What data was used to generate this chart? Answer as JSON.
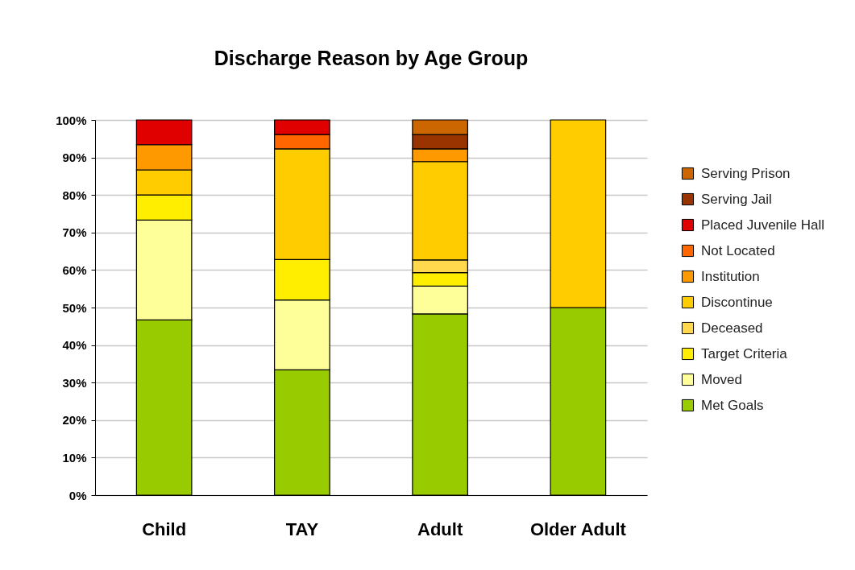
{
  "chart_data": {
    "type": "bar",
    "title": "Discharge Reason by Age Group",
    "categories": [
      "Child",
      "TAY",
      "Adult",
      "Older Adult"
    ],
    "stacked": true,
    "series": [
      {
        "name": "Met Goals",
        "color": "#99cc00",
        "values": [
          46.7,
          33.4,
          48.3,
          50
        ]
      },
      {
        "name": "Moved",
        "color": "#ffff99",
        "values": [
          26.6,
          18.6,
          7.4,
          null
        ]
      },
      {
        "name": "Target Criteria",
        "color": "#ffee00",
        "values": [
          6.7,
          10.8,
          3.6,
          null
        ]
      },
      {
        "name": "Deceased",
        "color": "#ffd84d",
        "values": [
          null,
          null,
          3.4,
          null
        ]
      },
      {
        "name": "Discontinue",
        "color": "#ffcc00",
        "values": [
          6.7,
          29.5,
          26.2,
          50
        ]
      },
      {
        "name": "Institution",
        "color": "#ff9900",
        "values": [
          6.7,
          null,
          3.4,
          null
        ]
      },
      {
        "name": "Not Located",
        "color": "#ff6600",
        "values": [
          null,
          3.8,
          null,
          null
        ]
      },
      {
        "name": "Placed Juvenile Hall",
        "color": "#e00000",
        "values": [
          6.6,
          3.9,
          null,
          null
        ]
      },
      {
        "name": "Serving Jail",
        "color": "#993300",
        "values": [
          null,
          null,
          3.8,
          null
        ]
      },
      {
        "name": "Serving Prison",
        "color": "#cc6600",
        "values": [
          null,
          null,
          3.9,
          null
        ]
      }
    ],
    "ylim": [
      0,
      100
    ],
    "yticks": [
      {
        "value": 0,
        "label": "0%"
      },
      {
        "value": 10,
        "label": "10%"
      },
      {
        "value": 20,
        "label": "20%"
      },
      {
        "value": 30,
        "label": "30%"
      },
      {
        "value": 40,
        "label": "40%"
      },
      {
        "value": 50,
        "label": "50%"
      },
      {
        "value": 60,
        "label": "60%"
      },
      {
        "value": 70,
        "label": "70%"
      },
      {
        "value": 80,
        "label": "80%"
      },
      {
        "value": 90,
        "label": "90%"
      },
      {
        "value": 100,
        "label": "100%"
      }
    ],
    "grid": "y",
    "legend": "right"
  }
}
